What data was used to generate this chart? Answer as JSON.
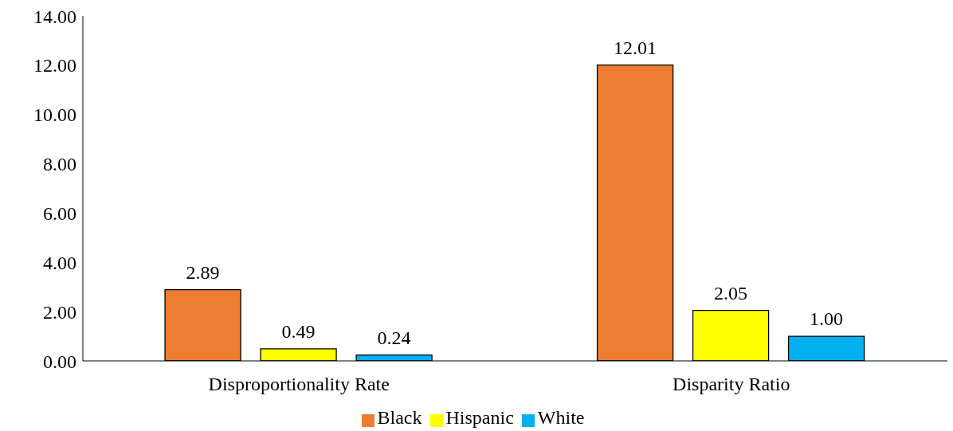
{
  "chart_data": {
    "type": "bar",
    "categories": [
      "Disproportionality Rate",
      "Disparity Ratio"
    ],
    "series": [
      {
        "name": "Black",
        "color": "#ed7d31",
        "values": [
          2.89,
          12.01
        ],
        "value_labels": [
          "2.89",
          "12.01"
        ]
      },
      {
        "name": "Hispanic",
        "color": "#ffff00",
        "values": [
          0.49,
          2.05
        ],
        "value_labels": [
          "0.49",
          "2.05"
        ]
      },
      {
        "name": "White",
        "color": "#00b0f0",
        "values": [
          0.24,
          1.0
        ],
        "value_labels": [
          "0.24",
          "1.00"
        ]
      }
    ],
    "ylim": [
      0,
      14
    ],
    "yticks": [
      {
        "value": 0,
        "label": "0.00"
      },
      {
        "value": 2,
        "label": "2.00"
      },
      {
        "value": 4,
        "label": "4.00"
      },
      {
        "value": 6,
        "label": "6.00"
      },
      {
        "value": 8,
        "label": "8.00"
      },
      {
        "value": 10,
        "label": "10.00"
      },
      {
        "value": 12,
        "label": "12.00"
      },
      {
        "value": 14,
        "label": "14.00"
      }
    ],
    "grid": false,
    "legend": "bottom"
  }
}
